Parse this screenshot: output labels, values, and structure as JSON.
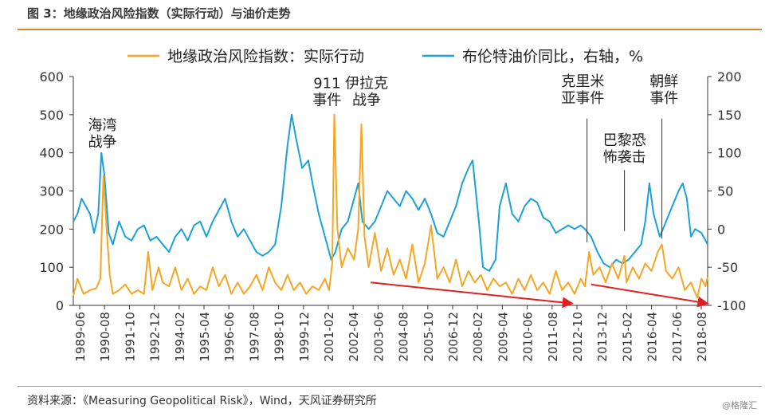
{
  "header": {
    "title": "图 3：地缘政治风险指数（实际行动）与油价走势"
  },
  "footer": {
    "source": "资料来源：《Measuring Geopolitical Risk》，Wind，天风证券研究所",
    "watermark": "@格隆汇"
  },
  "colors": {
    "rule": "#d9832a",
    "gpr": "#f5a623",
    "oil": "#1ba1d8",
    "arrow": "#e02020"
  },
  "chart_data": {
    "type": "line",
    "title": "",
    "xlabel": "",
    "ylabel": "",
    "y2label": "",
    "ylim": [
      0,
      600
    ],
    "y2lim": [
      -100,
      200
    ],
    "yticks": [
      0,
      100,
      200,
      300,
      400,
      500,
      600
    ],
    "y2ticks": [
      -100,
      -50,
      0,
      50,
      100,
      150,
      200
    ],
    "grid": false,
    "legend_position": "top",
    "x_ticks": [
      "1989-06",
      "1990-08",
      "1991-10",
      "1992-12",
      "1994-02",
      "1995-04",
      "1996-06",
      "1997-08",
      "1998-10",
      "1999-12",
      "2001-02",
      "2002-04",
      "2003-06",
      "2004-08",
      "2005-10",
      "2006-12",
      "2008-02",
      "2009-04",
      "2010-06",
      "2011-08",
      "2012-10",
      "2013-12",
      "2015-02",
      "2016-04",
      "2017-06",
      "2018-08"
    ],
    "series": [
      {
        "name": "地缘政治风险指数：实际行动",
        "axis": "left",
        "points": [
          [
            1989.4,
            25
          ],
          [
            1989.6,
            70
          ],
          [
            1989.9,
            30
          ],
          [
            1990.2,
            40
          ],
          [
            1990.5,
            45
          ],
          [
            1990.7,
            70
          ],
          [
            1990.85,
            340
          ],
          [
            1991.0,
            200
          ],
          [
            1991.15,
            80
          ],
          [
            1991.3,
            30
          ],
          [
            1991.6,
            40
          ],
          [
            1991.9,
            55
          ],
          [
            1992.2,
            30
          ],
          [
            1992.5,
            40
          ],
          [
            1992.8,
            30
          ],
          [
            1993.0,
            140
          ],
          [
            1993.2,
            40
          ],
          [
            1993.5,
            100
          ],
          [
            1993.7,
            60
          ],
          [
            1994.0,
            50
          ],
          [
            1994.3,
            100
          ],
          [
            1994.6,
            40
          ],
          [
            1994.9,
            70
          ],
          [
            1995.2,
            30
          ],
          [
            1995.5,
            50
          ],
          [
            1995.8,
            40
          ],
          [
            1996.1,
            100
          ],
          [
            1996.4,
            50
          ],
          [
            1996.7,
            80
          ],
          [
            1997.0,
            30
          ],
          [
            1997.3,
            60
          ],
          [
            1997.6,
            30
          ],
          [
            1997.9,
            50
          ],
          [
            1998.2,
            80
          ],
          [
            1998.5,
            40
          ],
          [
            1998.8,
            100
          ],
          [
            1999.1,
            60
          ],
          [
            1999.4,
            40
          ],
          [
            1999.7,
            80
          ],
          [
            2000.0,
            40
          ],
          [
            2000.3,
            60
          ],
          [
            2000.6,
            30
          ],
          [
            2000.9,
            50
          ],
          [
            2001.2,
            40
          ],
          [
            2001.5,
            70
          ],
          [
            2001.7,
            40
          ],
          [
            2001.85,
            110
          ],
          [
            2001.95,
            500
          ],
          [
            2002.1,
            200
          ],
          [
            2002.3,
            100
          ],
          [
            2002.6,
            150
          ],
          [
            2002.9,
            120
          ],
          [
            2003.1,
            200
          ],
          [
            2003.25,
            475
          ],
          [
            2003.4,
            180
          ],
          [
            2003.6,
            100
          ],
          [
            2003.9,
            190
          ],
          [
            2004.2,
            90
          ],
          [
            2004.5,
            150
          ],
          [
            2004.8,
            80
          ],
          [
            2005.1,
            120
          ],
          [
            2005.4,
            70
          ],
          [
            2005.7,
            160
          ],
          [
            2006.0,
            60
          ],
          [
            2006.3,
            110
          ],
          [
            2006.6,
            210
          ],
          [
            2006.9,
            70
          ],
          [
            2007.2,
            100
          ],
          [
            2007.5,
            60
          ],
          [
            2007.8,
            120
          ],
          [
            2008.1,
            50
          ],
          [
            2008.4,
            90
          ],
          [
            2008.7,
            60
          ],
          [
            2009.0,
            80
          ],
          [
            2009.3,
            40
          ],
          [
            2009.6,
            70
          ],
          [
            2009.9,
            50
          ],
          [
            2010.2,
            60
          ],
          [
            2010.5,
            30
          ],
          [
            2010.8,
            70
          ],
          [
            2011.1,
            40
          ],
          [
            2011.4,
            80
          ],
          [
            2011.7,
            40
          ],
          [
            2012.0,
            60
          ],
          [
            2012.3,
            30
          ],
          [
            2012.6,
            90
          ],
          [
            2012.9,
            40
          ],
          [
            2013.2,
            60
          ],
          [
            2013.5,
            30
          ],
          [
            2013.8,
            70
          ],
          [
            2014.0,
            50
          ],
          [
            2014.2,
            140
          ],
          [
            2014.4,
            80
          ],
          [
            2014.7,
            100
          ],
          [
            2015.0,
            60
          ],
          [
            2015.3,
            110
          ],
          [
            2015.6,
            70
          ],
          [
            2015.9,
            130
          ],
          [
            2016.0,
            60
          ],
          [
            2016.3,
            100
          ],
          [
            2016.6,
            70
          ],
          [
            2016.9,
            110
          ],
          [
            2017.2,
            90
          ],
          [
            2017.5,
            140
          ],
          [
            2017.7,
            160
          ],
          [
            2017.9,
            90
          ],
          [
            2018.2,
            70
          ],
          [
            2018.5,
            100
          ],
          [
            2018.8,
            40
          ],
          [
            2019.1,
            60
          ],
          [
            2019.4,
            20
          ],
          [
            2019.6,
            70
          ],
          [
            2019.8,
            50
          ],
          [
            2019.9,
            75
          ]
        ]
      },
      {
        "name": "布伦特油价同比，右轴，%",
        "axis": "right",
        "points": [
          [
            1989.4,
            10
          ],
          [
            1989.6,
            20
          ],
          [
            1989.8,
            40
          ],
          [
            1990.0,
            30
          ],
          [
            1990.2,
            20
          ],
          [
            1990.4,
            -5
          ],
          [
            1990.6,
            20
          ],
          [
            1990.75,
            100
          ],
          [
            1990.9,
            70
          ],
          [
            1991.1,
            -5
          ],
          [
            1991.3,
            -20
          ],
          [
            1991.6,
            10
          ],
          [
            1991.9,
            -10
          ],
          [
            1992.2,
            -15
          ],
          [
            1992.5,
            0
          ],
          [
            1992.8,
            5
          ],
          [
            1993.1,
            -15
          ],
          [
            1993.4,
            -10
          ],
          [
            1993.7,
            -20
          ],
          [
            1994.0,
            -30
          ],
          [
            1994.3,
            -10
          ],
          [
            1994.6,
            0
          ],
          [
            1994.9,
            -15
          ],
          [
            1995.2,
            5
          ],
          [
            1995.5,
            10
          ],
          [
            1995.8,
            -10
          ],
          [
            1996.1,
            10
          ],
          [
            1996.4,
            25
          ],
          [
            1996.7,
            40
          ],
          [
            1997.0,
            10
          ],
          [
            1997.3,
            -10
          ],
          [
            1997.6,
            0
          ],
          [
            1997.9,
            -15
          ],
          [
            1998.2,
            -30
          ],
          [
            1998.5,
            -35
          ],
          [
            1998.8,
            -30
          ],
          [
            1999.1,
            -20
          ],
          [
            1999.4,
            30
          ],
          [
            1999.7,
            110
          ],
          [
            1999.9,
            150
          ],
          [
            2000.1,
            120
          ],
          [
            2000.4,
            80
          ],
          [
            2000.7,
            90
          ],
          [
            2000.9,
            60
          ],
          [
            2001.2,
            20
          ],
          [
            2001.5,
            -10
          ],
          [
            2001.8,
            -40
          ],
          [
            2002.0,
            -30
          ],
          [
            2002.3,
            0
          ],
          [
            2002.6,
            10
          ],
          [
            2002.9,
            40
          ],
          [
            2003.1,
            60
          ],
          [
            2003.3,
            10
          ],
          [
            2003.6,
            0
          ],
          [
            2003.9,
            10
          ],
          [
            2004.2,
            30
          ],
          [
            2004.5,
            50
          ],
          [
            2004.8,
            40
          ],
          [
            2005.1,
            30
          ],
          [
            2005.4,
            50
          ],
          [
            2005.7,
            40
          ],
          [
            2006.0,
            25
          ],
          [
            2006.3,
            40
          ],
          [
            2006.6,
            20
          ],
          [
            2006.9,
            -5
          ],
          [
            2007.2,
            -10
          ],
          [
            2007.5,
            10
          ],
          [
            2007.8,
            30
          ],
          [
            2008.1,
            60
          ],
          [
            2008.4,
            80
          ],
          [
            2008.6,
            90
          ],
          [
            2008.9,
            10
          ],
          [
            2009.1,
            -50
          ],
          [
            2009.4,
            -55
          ],
          [
            2009.7,
            -40
          ],
          [
            2009.9,
            30
          ],
          [
            2010.2,
            60
          ],
          [
            2010.5,
            20
          ],
          [
            2010.8,
            10
          ],
          [
            2011.1,
            30
          ],
          [
            2011.4,
            40
          ],
          [
            2011.7,
            35
          ],
          [
            2012.0,
            15
          ],
          [
            2012.3,
            10
          ],
          [
            2012.6,
            -5
          ],
          [
            2012.9,
            0
          ],
          [
            2013.2,
            5
          ],
          [
            2013.5,
            0
          ],
          [
            2013.8,
            5
          ],
          [
            2014.0,
            0
          ],
          [
            2014.3,
            -10
          ],
          [
            2014.6,
            -30
          ],
          [
            2014.9,
            -45
          ],
          [
            2015.2,
            -50
          ],
          [
            2015.5,
            -40
          ],
          [
            2015.8,
            -45
          ],
          [
            2016.1,
            -40
          ],
          [
            2016.4,
            -30
          ],
          [
            2016.7,
            -20
          ],
          [
            2016.9,
            10
          ],
          [
            2017.1,
            60
          ],
          [
            2017.3,
            20
          ],
          [
            2017.6,
            -10
          ],
          [
            2017.9,
            10
          ],
          [
            2018.2,
            30
          ],
          [
            2018.5,
            50
          ],
          [
            2018.7,
            60
          ],
          [
            2018.9,
            40
          ],
          [
            2019.1,
            -10
          ],
          [
            2019.3,
            0
          ],
          [
            2019.6,
            -5
          ],
          [
            2019.9,
            -20
          ]
        ]
      }
    ],
    "annotations": [
      {
        "text": [
          "海湾",
          "战争"
        ],
        "x": 1990.8,
        "y": 460
      },
      {
        "text": [
          "911",
          "事件"
        ],
        "x": 2001.6,
        "y": 570
      },
      {
        "text": [
          "伊拉克",
          "战争"
        ],
        "x": 2003.5,
        "y": 570
      },
      {
        "text": [
          "克里米",
          "亚事件"
        ],
        "x": 2013.9,
        "y": 575
      },
      {
        "text": [
          "巴黎恐",
          "怖袭击"
        ],
        "x": 2015.9,
        "y": 420
      },
      {
        "text": [
          "朝鲜",
          "事件"
        ],
        "x": 2017.8,
        "y": 575
      }
    ],
    "pointer_lines": [
      {
        "x": 2014.1,
        "y_top": 490,
        "y_bottom": 165
      },
      {
        "x": 2015.9,
        "y_top": 355,
        "y_bottom": 195
      },
      {
        "x": 2017.7,
        "y_top": 490,
        "y_bottom": 175
      }
    ],
    "trend_arrows": [
      {
        "from": [
          2003.7,
          60
        ],
        "to": [
          2013.4,
          5
        ]
      },
      {
        "from": [
          2014.3,
          55
        ],
        "to": [
          2019.9,
          5
        ]
      }
    ]
  }
}
